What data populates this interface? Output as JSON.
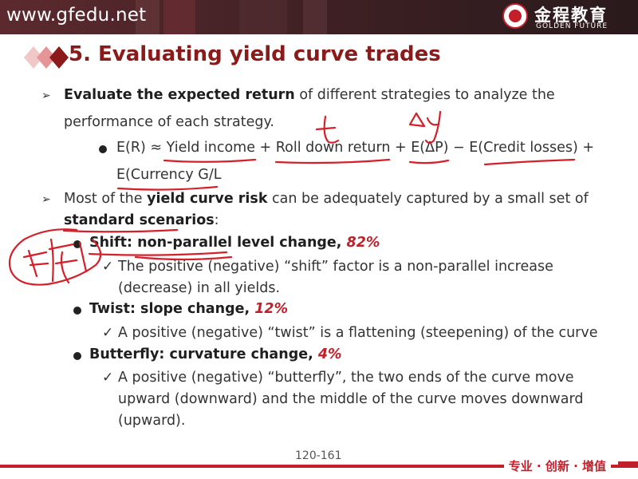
{
  "header": {
    "url": "www.gfedu.net",
    "logo_cn": "金程教育",
    "logo_en": "GOLDEN FUTURE"
  },
  "title": "5. Evaluating yield curve trades",
  "bullets": {
    "b1_bold": "Evaluate the expected return",
    "b1_rest": " of different strategies to analyze the",
    "b1_line2": "performance of each strategy.",
    "formula_line1": "E(R) ≈ Yield income + Roll down return + E(ΔP) − E(Credit losses) +",
    "formula_line2": "E(Currency G/L",
    "b2_pre": "Most of the ",
    "b2_bold": "yield curve risk",
    "b2_rest": " can be adequately captured by a small set of",
    "b2_line2_bold": "standard scenarios",
    "b2_line2_rest": ":",
    "shift_label": "Shift: non-parallel level change, ",
    "shift_pct": "82%",
    "shift_desc1": "The positive (negative) “shift” factor is a non-parallel increase",
    "shift_desc2": "(decrease) in all yields.",
    "twist_label": "Twist: slope change, ",
    "twist_pct": "12%",
    "twist_desc": "A positive (negative) “twist” is a flattening (steepening) of the curve",
    "butterfly_label": "Butterfly: curvature change, ",
    "butterfly_pct": "4%",
    "butterfly_desc1": "A positive (negative) “butterfly”, the two ends of the curve move",
    "butterfly_desc2": "upward (downward) and the middle of the curve moves downward",
    "butterfly_desc3": "(upward)."
  },
  "footer": {
    "page": "120-161",
    "slogan": "专业 · 创新 · 增值"
  },
  "colors": {
    "accent": "#8b1a1a",
    "brand_red": "#c21f2a",
    "ink": "#d4202a"
  }
}
